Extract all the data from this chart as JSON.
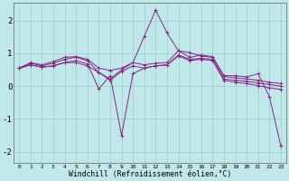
{
  "xlabel": "Windchill (Refroidissement éolien,°C)",
  "bg_color": "#c0e8e8",
  "line_color": "#882288",
  "grid_color": "#99cccc",
  "xlim_min": -0.5,
  "xlim_max": 23.5,
  "ylim_min": -2.35,
  "ylim_max": 2.55,
  "xticks": [
    0,
    1,
    2,
    3,
    4,
    5,
    6,
    7,
    8,
    9,
    10,
    11,
    12,
    13,
    14,
    15,
    16,
    17,
    18,
    19,
    20,
    21,
    22,
    23
  ],
  "yticks": [
    -2,
    -1,
    0,
    1,
    2
  ],
  "series": [
    [
      0.55,
      0.72,
      0.65,
      0.75,
      0.88,
      0.9,
      0.82,
      0.55,
      0.48,
      0.55,
      0.72,
      0.65,
      0.7,
      0.72,
      1.08,
      1.02,
      0.92,
      0.88,
      0.3,
      0.25,
      0.22,
      0.18,
      0.12,
      0.08
    ],
    [
      0.55,
      0.7,
      0.62,
      0.7,
      0.82,
      0.88,
      0.78,
      0.42,
      0.22,
      0.5,
      0.72,
      1.52,
      2.32,
      1.62,
      1.08,
      0.88,
      0.95,
      0.9,
      0.32,
      0.32,
      0.28,
      0.38,
      -0.32,
      -1.82
    ],
    [
      0.55,
      0.65,
      0.58,
      0.62,
      0.72,
      0.78,
      0.68,
      -0.08,
      0.32,
      -1.5,
      0.38,
      0.55,
      0.62,
      0.65,
      0.95,
      0.82,
      0.85,
      0.82,
      0.22,
      0.18,
      0.15,
      0.1,
      0.05,
      0.0
    ],
    [
      0.55,
      0.65,
      0.58,
      0.62,
      0.72,
      0.72,
      0.62,
      0.42,
      0.18,
      0.45,
      0.62,
      0.55,
      0.62,
      0.65,
      0.92,
      0.78,
      0.82,
      0.78,
      0.18,
      0.12,
      0.08,
      0.02,
      -0.05,
      -0.1
    ]
  ]
}
